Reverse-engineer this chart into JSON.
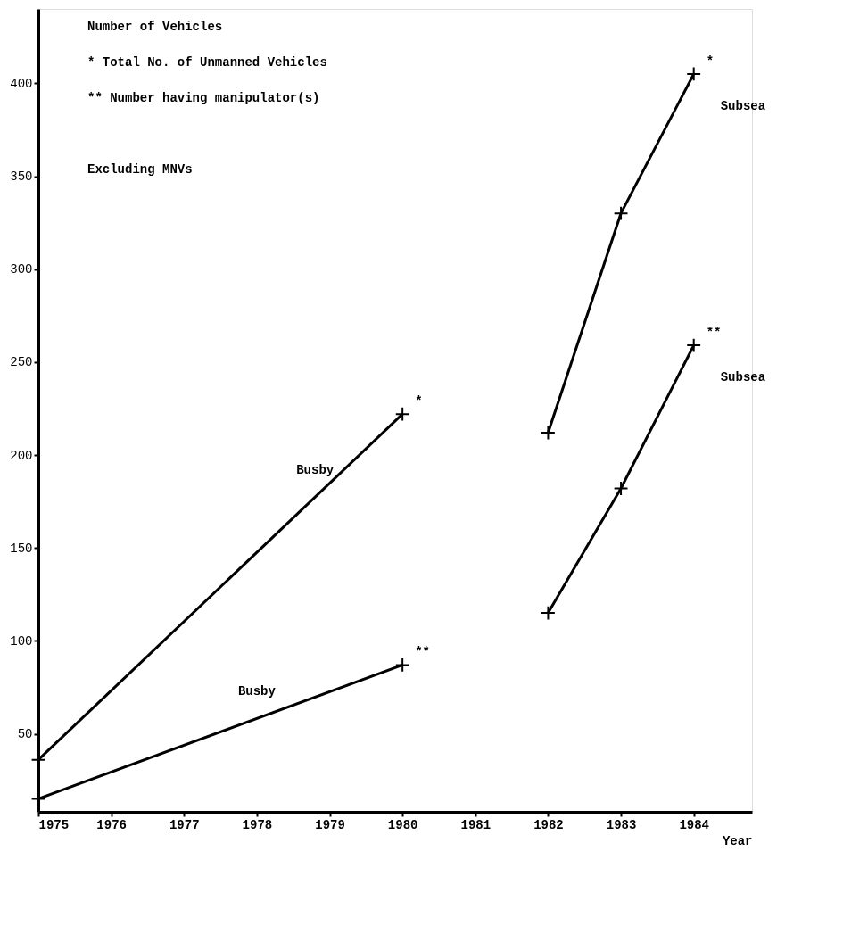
{
  "chart_data": {
    "type": "line",
    "xlabel": "Year",
    "xlim": [
      1975,
      1984.8
    ],
    "xticks": [
      1975,
      1976,
      1977,
      1978,
      1979,
      1980,
      1981,
      1982,
      1983,
      1984
    ],
    "ylim": [
      8,
      440
    ],
    "yticks": [
      50,
      100,
      150,
      200,
      250,
      300,
      350,
      400
    ],
    "grid": false,
    "marker": "cross",
    "line_style": "solid",
    "series": [
      {
        "color": "#000000",
        "x": [
          1975,
          1980
        ],
        "values": [
          36,
          222
        ]
      },
      {
        "color": "#000000",
        "x": [
          1975,
          1980
        ],
        "values": [
          15,
          87
        ]
      },
      {
        "color": "#000000",
        "x": [
          1982,
          1983,
          1984
        ],
        "values": [
          212,
          330,
          405
        ]
      },
      {
        "color": "#000000",
        "x": [
          1982,
          1983,
          1984
        ],
        "values": [
          115,
          182,
          259
        ]
      }
    ],
    "annotations": [
      "Number of Vehicles",
      "*   Total No. of Unmanned Vehicles",
      "**  Number having manipulator(s)",
      "Excluding MNVs",
      {
        "text": "*",
        "x": 1980,
        "y": 222
      },
      {
        "text": "Busby",
        "x": 1978.8,
        "y": 177.4
      },
      {
        "text": "**",
        "x": 1980,
        "y": 87
      },
      {
        "text": "Busby",
        "x": 1978,
        "y": 58.2
      },
      {
        "text": "*",
        "x": 1984,
        "y": 405
      },
      {
        "text": "Subsea",
        "x": 1984,
        "y": 405
      },
      {
        "text": "**",
        "x": 1984,
        "y": 259
      },
      {
        "text": "Subsea",
        "x": 1984,
        "y": 259
      }
    ]
  }
}
